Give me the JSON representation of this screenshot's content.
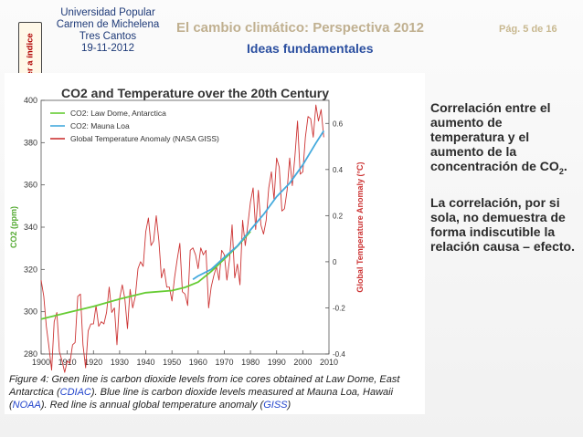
{
  "header": {
    "back_tab": "Volver a índice",
    "org_line1": "Universidad Popular",
    "org_line2": "Carmen de Michelena",
    "org_line3": "Tres Cantos",
    "date": "19-11-2012",
    "title": "El cambio climático: Perspectiva 2012",
    "page": "Pág. 5 de 16",
    "subtitle": "Ideas fundamentales"
  },
  "bullets": {
    "b1_text": "Correlación entre el aumento de temperatura y el aumento de la concentración de CO",
    "b1_sub": "2",
    "b1_end": ".",
    "b2": "La correlación, por si sola, no demuestra de forma indiscutible la relación causa – efecto."
  },
  "figure": {
    "caption_1": "Figure 4: Green line is carbon dioxide levels from ice cores obtained at Law Dome, East Antarctica (",
    "caption_cdiac": "CDIAC",
    "caption_2": "). Blue line is carbon dioxide levels measured at Mauna Loa, Hawaii (",
    "caption_noaa": "NOAA",
    "caption_3": "). Red line is annual global temperature anomaly (",
    "caption_giss": "GISS",
    "caption_4": ")"
  },
  "colors": {
    "law_dome": "#66cc33",
    "mauna_loa": "#44aadd",
    "temperature": "#cc3333"
  },
  "chart_data": {
    "type": "line",
    "title": "CO2 and Temperature over the 20th Century",
    "xlabel": "",
    "ylabel_left": "CO2 (ppm)",
    "ylabel_right": "Global Temperature Anomaly (°C)",
    "xlim": [
      1900,
      2010
    ],
    "ylim_left": [
      280,
      400
    ],
    "ylim_right": [
      -0.4,
      0.7
    ],
    "x_ticks": [
      1900,
      1910,
      1920,
      1930,
      1940,
      1950,
      1960,
      1970,
      1980,
      1990,
      2000,
      2010
    ],
    "y_ticks_left": [
      280,
      300,
      320,
      340,
      360,
      380,
      400
    ],
    "y_ticks_right": [
      -0.4,
      -0.2,
      0,
      0.2,
      0.4,
      0.6
    ],
    "legend_position": "top-left",
    "series": [
      {
        "name": "CO2: Law Dome, Antarctica",
        "axis": "left",
        "x": [
          1900,
          1910,
          1920,
          1930,
          1940,
          1950,
          1955,
          1960,
          1965,
          1970,
          1975,
          1980
        ],
        "y": [
          296.5,
          299.5,
          302.5,
          306,
          309,
          310,
          311.5,
          314,
          319,
          325,
          331,
          338
        ]
      },
      {
        "name": "CO2: Mauna Loa",
        "axis": "left",
        "x": [
          1958,
          1960,
          1965,
          1970,
          1975,
          1980,
          1985,
          1990,
          1995,
          2000,
          2005,
          2008
        ],
        "y": [
          315.3,
          316.9,
          320,
          325.7,
          331.1,
          338.7,
          346,
          354.4,
          360.8,
          369.5,
          379.8,
          385.6
        ]
      },
      {
        "name": "Global Temperature Anomaly (NASA GISS)",
        "axis": "right",
        "x": [
          1900,
          1901,
          1902,
          1903,
          1904,
          1905,
          1906,
          1907,
          1908,
          1909,
          1910,
          1911,
          1912,
          1913,
          1914,
          1915,
          1916,
          1917,
          1918,
          1919,
          1920,
          1921,
          1922,
          1923,
          1924,
          1925,
          1926,
          1927,
          1928,
          1929,
          1930,
          1931,
          1932,
          1933,
          1934,
          1935,
          1936,
          1937,
          1938,
          1939,
          1940,
          1941,
          1942,
          1943,
          1944,
          1945,
          1946,
          1947,
          1948,
          1949,
          1950,
          1951,
          1952,
          1953,
          1954,
          1955,
          1956,
          1957,
          1958,
          1959,
          1960,
          1961,
          1962,
          1963,
          1964,
          1965,
          1966,
          1967,
          1968,
          1969,
          1970,
          1971,
          1972,
          1973,
          1974,
          1975,
          1976,
          1977,
          1978,
          1979,
          1980,
          1981,
          1982,
          1983,
          1984,
          1985,
          1986,
          1987,
          1988,
          1989,
          1990,
          1991,
          1992,
          1993,
          1994,
          1995,
          1996,
          1997,
          1998,
          1999,
          2000,
          2001,
          2002,
          2003,
          2004,
          2005,
          2006,
          2007,
          2008
        ],
        "y": [
          -0.08,
          -0.15,
          -0.28,
          -0.37,
          -0.47,
          -0.26,
          -0.22,
          -0.39,
          -0.43,
          -0.48,
          -0.43,
          -0.44,
          -0.36,
          -0.35,
          -0.15,
          -0.14,
          -0.36,
          -0.46,
          -0.3,
          -0.27,
          -0.27,
          -0.19,
          -0.28,
          -0.26,
          -0.27,
          -0.22,
          -0.11,
          -0.22,
          -0.2,
          -0.36,
          -0.16,
          -0.1,
          -0.16,
          -0.29,
          -0.12,
          -0.2,
          -0.15,
          -0.03,
          0.0,
          -0.02,
          0.13,
          0.19,
          0.07,
          0.09,
          0.2,
          0.09,
          -0.07,
          -0.03,
          -0.11,
          -0.11,
          -0.17,
          -0.07,
          0.01,
          0.08,
          -0.13,
          -0.14,
          -0.19,
          0.05,
          0.06,
          0.03,
          -0.03,
          0.06,
          0.03,
          0.05,
          -0.2,
          -0.11,
          -0.06,
          -0.02,
          -0.08,
          0.05,
          0.03,
          -0.08,
          0.01,
          0.16,
          -0.07,
          -0.01,
          -0.1,
          0.18,
          0.07,
          0.16,
          0.26,
          0.32,
          0.14,
          0.31,
          0.16,
          0.12,
          0.18,
          0.32,
          0.39,
          0.27,
          0.45,
          0.41,
          0.22,
          0.23,
          0.31,
          0.45,
          0.33,
          0.46,
          0.61,
          0.38,
          0.39,
          0.54,
          0.63,
          0.62,
          0.54,
          0.68,
          0.61,
          0.66,
          0.54
        ]
      }
    ]
  }
}
